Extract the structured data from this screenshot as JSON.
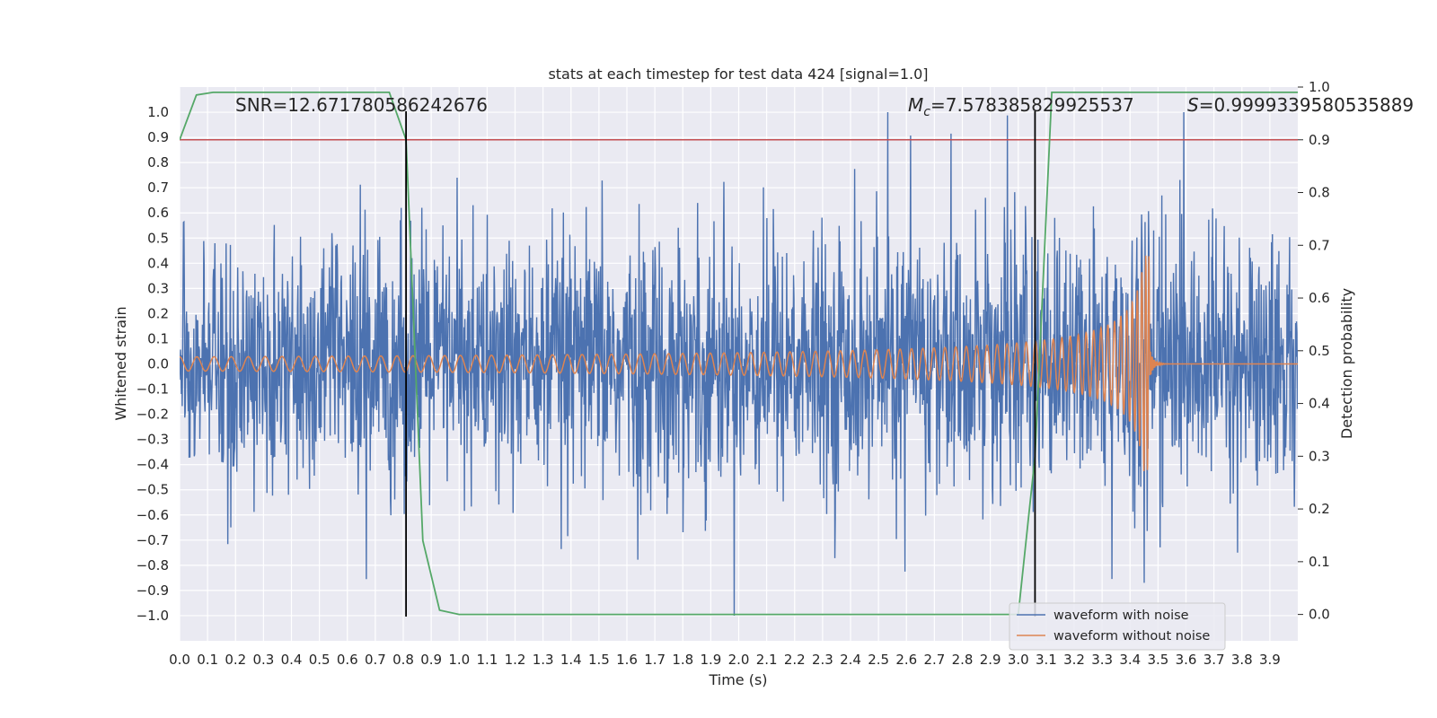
{
  "chart_data": {
    "type": "line",
    "title": "stats at each timestep for test data 424 [signal=1.0]",
    "xlabel": "Time (s)",
    "ylabel": "Whitened strain",
    "y2label": "Detection probability",
    "xlim": [
      0.0,
      4.0
    ],
    "ylim": [
      -1.1,
      1.1
    ],
    "y2lim": [
      -0.05,
      1.0
    ],
    "x_ticks": [
      "0.0",
      "0.1",
      "0.2",
      "0.3",
      "0.4",
      "0.5",
      "0.6",
      "0.7",
      "0.8",
      "0.9",
      "1.0",
      "1.1",
      "1.2",
      "1.3",
      "1.4",
      "1.5",
      "1.6",
      "1.7",
      "1.8",
      "1.9",
      "2.0",
      "2.1",
      "2.2",
      "2.3",
      "2.4",
      "2.5",
      "2.6",
      "2.7",
      "2.8",
      "2.9",
      "3.0",
      "3.1",
      "3.2",
      "3.3",
      "3.4",
      "3.5",
      "3.6",
      "3.7",
      "3.8",
      "3.9"
    ],
    "y_ticks": [
      "1.0",
      "0.9",
      "0.8",
      "0.7",
      "0.6",
      "0.5",
      "0.4",
      "0.3",
      "0.2",
      "0.1",
      "0.0",
      "−0.1",
      "−0.2",
      "−0.3",
      "−0.4",
      "−0.5",
      "−0.6",
      "−0.7",
      "−0.8",
      "−0.9",
      "−1.0"
    ],
    "y2_ticks": [
      "1.0",
      "0.9",
      "0.8",
      "0.7",
      "0.6",
      "0.5",
      "0.4",
      "0.3",
      "0.2",
      "0.1",
      "0.0"
    ],
    "grid": true,
    "legend_position": "bottom-right",
    "series": [
      {
        "name": "waveform with noise",
        "color": "#4c72b0",
        "axis": "left",
        "kind": "noise",
        "amplitude_range": [
          -1.0,
          1.0
        ]
      },
      {
        "name": "waveform without noise",
        "color": "#dd8452",
        "axis": "left",
        "kind": "chirp",
        "merger_time": 3.47,
        "peak_amplitude": 0.43
      },
      {
        "name": "detection probability",
        "color": "#55a868",
        "axis": "right",
        "x": [
          0.0,
          0.06,
          0.12,
          0.18,
          0.25,
          0.37,
          0.5,
          0.62,
          0.69,
          0.75,
          0.81,
          0.87,
          0.93,
          1.0,
          1.5,
          2.0,
          2.5,
          3.0,
          3.06,
          3.12,
          3.18,
          3.3,
          3.5,
          3.7,
          3.9,
          4.0
        ],
        "y": [
          0.9,
          0.985,
          0.99,
          0.99,
          0.99,
          0.99,
          0.99,
          0.99,
          0.99,
          0.99,
          0.9,
          0.14,
          0.008,
          0.0,
          0.0,
          0.0,
          0.0,
          0.0,
          0.3,
          0.99,
          0.99,
          0.99,
          0.99,
          0.99,
          0.99,
          0.99
        ]
      }
    ],
    "threshold": {
      "value": 0.9,
      "axis": "right",
      "color": "#c44e52"
    },
    "vlines": [
      {
        "x": 0.81,
        "color": "#000000"
      },
      {
        "x": 3.06,
        "color": "#000000"
      }
    ],
    "annotations": {
      "snr": "SNR=12.671780586242676",
      "mc_value": "=7.578385829925537",
      "s_value": "=0.9999339580535889"
    }
  }
}
